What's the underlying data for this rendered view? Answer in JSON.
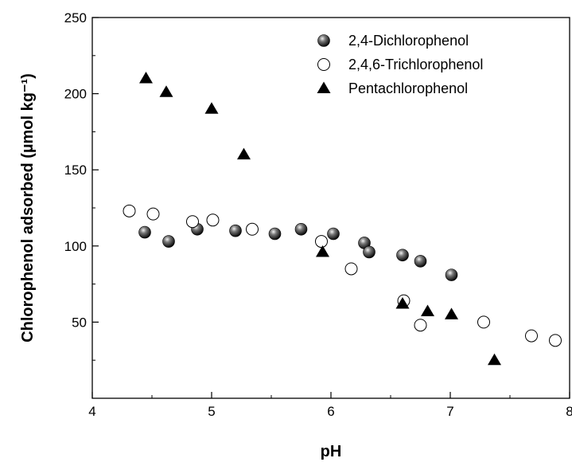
{
  "chart_data": {
    "type": "scatter",
    "xlabel": "pH",
    "ylabel": "Chlorophenol adsorbed (µmol kg⁻¹)",
    "xlim": [
      4,
      8
    ],
    "ylim": [
      0,
      250
    ],
    "xticks": [
      "4",
      "5",
      "6",
      "7",
      "8"
    ],
    "yticks": [
      "50",
      "100",
      "150",
      "200",
      "250"
    ],
    "xtick_values": [
      4,
      5,
      6,
      7,
      8
    ],
    "ytick_values": [
      50,
      100,
      150,
      200,
      250
    ],
    "grid": false,
    "legend_position": "top-right",
    "series": [
      {
        "name": "2,4-Dichlorophenol",
        "marker": "filled-sphere",
        "x": [
          4.44,
          4.64,
          4.88,
          5.2,
          5.53,
          5.75,
          6.02,
          6.28,
          6.32,
          6.6,
          6.75,
          7.01
        ],
        "y": [
          109,
          103,
          111,
          110,
          108,
          111,
          108,
          102,
          96,
          94,
          90,
          81
        ]
      },
      {
        "name": "2,4,6-Trichlorophenol",
        "marker": "open-circle",
        "x": [
          4.31,
          4.51,
          4.84,
          5.01,
          5.34,
          5.92,
          6.17,
          6.61,
          6.75,
          7.28,
          7.68,
          7.88
        ],
        "y": [
          123,
          121,
          116,
          117,
          111,
          103,
          85,
          64,
          48,
          50,
          41,
          38
        ]
      },
      {
        "name": "Pentachlorophenol",
        "marker": "filled-triangle",
        "x": [
          4.45,
          4.62,
          5.0,
          5.27,
          5.93,
          6.6,
          6.81,
          7.01,
          7.37
        ],
        "y": [
          210,
          201,
          190,
          160,
          96,
          62,
          57,
          55,
          25
        ]
      }
    ]
  }
}
